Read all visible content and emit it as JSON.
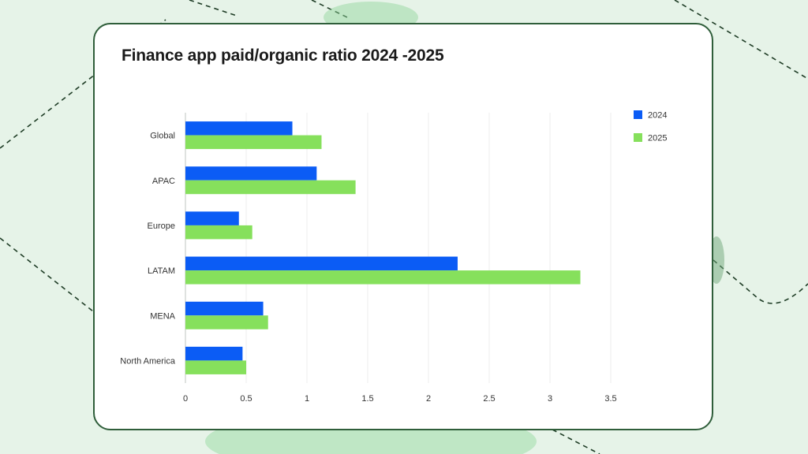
{
  "colors": {
    "series_2024": "#0b5cf5",
    "series_2025": "#86e05c",
    "card_border": "#2f5e3a",
    "background": "#e6f3e8"
  },
  "chart_data": {
    "type": "bar",
    "orientation": "horizontal",
    "title": "Finance app paid/organic ratio 2024 -2025",
    "xlabel": "",
    "ylabel": "",
    "categories": [
      "Global",
      "APAC",
      "Europe",
      "LATAM",
      "MENA",
      "North America"
    ],
    "series": [
      {
        "name": "2024",
        "values": [
          0.88,
          1.08,
          0.44,
          2.24,
          0.64,
          0.47
        ]
      },
      {
        "name": "2025",
        "values": [
          1.12,
          1.4,
          0.55,
          3.25,
          0.68,
          0.5
        ]
      }
    ],
    "xlim": [
      0,
      3.5
    ],
    "xticks": [
      "0",
      "0.5",
      "1",
      "1.5",
      "2",
      "2.5",
      "3",
      "3.5"
    ],
    "grid": true,
    "legend_position": "top-right"
  }
}
